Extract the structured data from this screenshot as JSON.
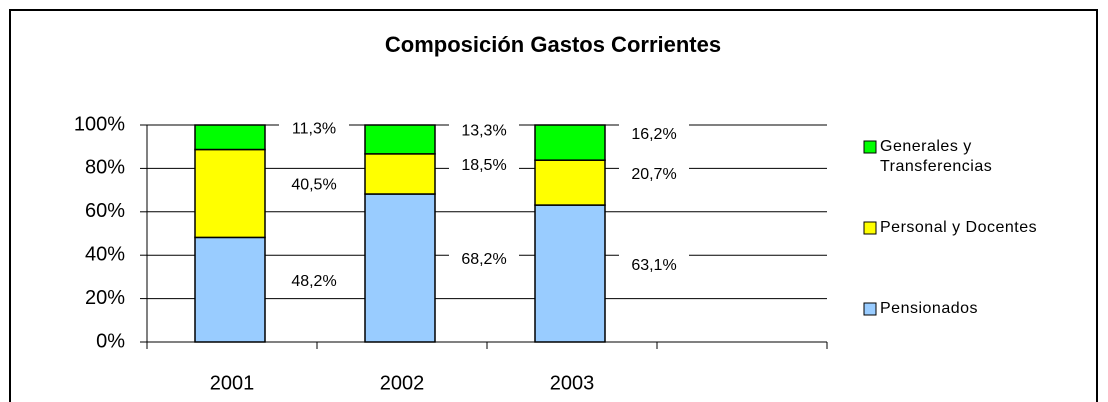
{
  "chart_data": {
    "type": "stacked_bar",
    "title": "Composición Gastos Corrientes",
    "categories": [
      "2001",
      "2002",
      "2003",
      null
    ],
    "series": [
      {
        "name": "Pensionados",
        "color": "#99ccff",
        "values": [
          48.2,
          68.2,
          63.1,
          null
        ],
        "value_labels": [
          "48,2%",
          "68,2%",
          "63,1%",
          null
        ]
      },
      {
        "name": "Personal y Docentes",
        "color": "#ffff00",
        "values": [
          40.5,
          18.5,
          20.7,
          null
        ],
        "value_labels": [
          "40,5%",
          "18,5%",
          "20,7%",
          null
        ]
      },
      {
        "name": "Generales y Transferencias",
        "color": "#00ff00",
        "values": [
          11.3,
          13.3,
          16.2,
          null
        ],
        "value_labels": [
          "11,3%",
          "13,3%",
          "16,2%",
          null
        ]
      }
    ],
    "ylim": [
      0,
      100
    ],
    "yticks": [
      {
        "value": 0,
        "label": "0%"
      },
      {
        "value": 20,
        "label": "20%"
      },
      {
        "value": 40,
        "label": "40%"
      },
      {
        "value": 60,
        "label": "60%"
      },
      {
        "value": 80,
        "label": "80%"
      },
      {
        "value": 100,
        "label": "100%"
      }
    ],
    "grid": true
  }
}
